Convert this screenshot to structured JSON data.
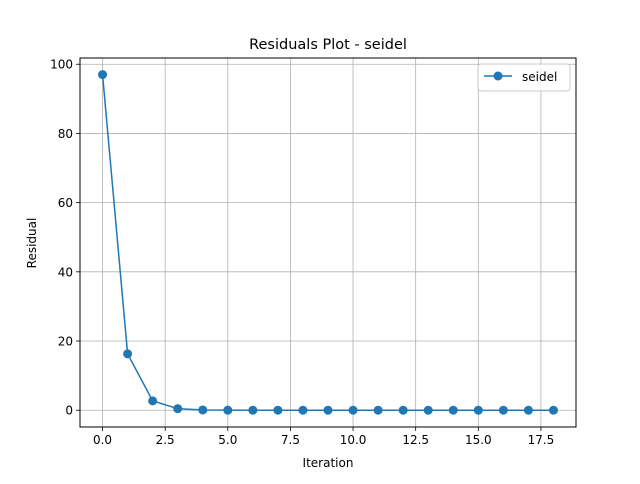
{
  "chart_data": {
    "type": "line",
    "title": "Residuals Plot - seidel",
    "xlabel": "Iteration",
    "ylabel": "Residual",
    "xlim": [
      -0.9,
      18.9
    ],
    "ylim": [
      -4.85,
      101.8
    ],
    "xticks": [
      0.0,
      2.5,
      5.0,
      7.5,
      10.0,
      12.5,
      15.0,
      17.5
    ],
    "xtick_labels": [
      "0.0",
      "2.5",
      "5.0",
      "7.5",
      "10.0",
      "12.5",
      "15.0",
      "17.5"
    ],
    "yticks": [
      0,
      20,
      40,
      60,
      80,
      100
    ],
    "ytick_labels": [
      "0",
      "20",
      "40",
      "60",
      "80",
      "100"
    ],
    "grid": true,
    "legend_position": "top-right",
    "series": [
      {
        "name": "seidel",
        "color": "#1f77b4",
        "marker": "circle",
        "x": [
          0,
          1,
          2,
          3,
          4,
          5,
          6,
          7,
          8,
          9,
          10,
          11,
          12,
          13,
          14,
          15,
          16,
          17,
          18
        ],
        "y": [
          97.0,
          16.3,
          2.7,
          0.45,
          0.08,
          0.015,
          0.003,
          0.0005,
          0.0001,
          0,
          0,
          0,
          0,
          0,
          0,
          0,
          0,
          0,
          0
        ]
      }
    ]
  }
}
